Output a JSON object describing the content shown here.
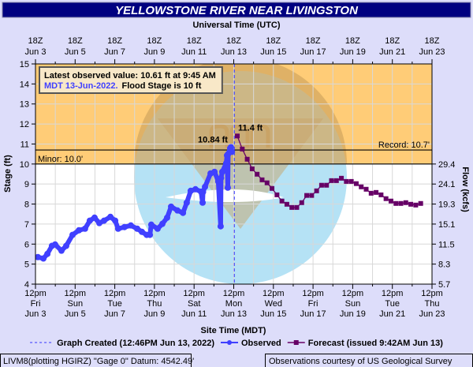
{
  "title": "YELLOWSTONE RIVER NEAR LIVINGSTON",
  "colors": {
    "title_bg": "#000080",
    "page_bg": "#ddddfa",
    "flood_zone": "#ffcc77",
    "observed": "#4040ff",
    "forecast": "#660066",
    "graph_created": "#3333ff"
  },
  "info_box": {
    "line1": "Latest observed value: 10.61 ft at 9:45 AM",
    "line2_blue": "MDT 13-Jun-2022.",
    "line2_black": "Flood Stage is 10 ft"
  },
  "footer": {
    "left": "LIVM8(plotting HGIRZ) \"Gage 0\" Datum: 4542.49'",
    "right": "Observations courtesy of US Geological Survey"
  },
  "legend": {
    "graph_created": "Graph Created (12:46PM Jun 13, 2022)",
    "observed": "Observed",
    "forecast": "Forecast (issued 9:42AM Jun 13)"
  },
  "chart_data": {
    "type": "line",
    "title": "YELLOWSTONE RIVER NEAR LIVINGSTON",
    "x_unit": "days since 12pm MDT Fri Jun 3, 2022",
    "xlim": [
      0,
      20
    ],
    "ylim": [
      4,
      15
    ],
    "top_xlabel": "Universal Time (UTC)",
    "xlabel": "Site Time (MDT)",
    "ylabel": "Stage (ft)",
    "y2label": "Flow (kcfs)",
    "grid": true,
    "y_ticks": [
      4,
      5,
      6,
      7,
      8,
      9,
      10,
      11,
      12,
      13,
      14,
      15
    ],
    "y2_ticks": [
      {
        "stage": 4,
        "label": "5.7"
      },
      {
        "stage": 5,
        "label": "8.3"
      },
      {
        "stage": 6,
        "label": "11.5"
      },
      {
        "stage": 7,
        "label": "15.1"
      },
      {
        "stage": 8,
        "label": "19.3"
      },
      {
        "stage": 9,
        "label": "24.1"
      },
      {
        "stage": 10,
        "label": "29.4"
      }
    ],
    "top_ticks": [
      [
        "18Z",
        "Jun 3"
      ],
      [
        "18Z",
        "Jun 5"
      ],
      [
        "18Z",
        "Jun 7"
      ],
      [
        "18Z",
        "Jun 9"
      ],
      [
        "18Z",
        "Jun 11"
      ],
      [
        "18Z",
        "Jun 13"
      ],
      [
        "18Z",
        "Jun 15"
      ],
      [
        "18Z",
        "Jun 17"
      ],
      [
        "18Z",
        "Jun 19"
      ],
      [
        "18Z",
        "Jun 21"
      ],
      [
        "18Z",
        "Jun 23"
      ]
    ],
    "bottom_ticks": [
      [
        "12pm",
        "Fri",
        "Jun 3"
      ],
      [
        "12pm",
        "Sun",
        "Jun 5"
      ],
      [
        "12pm",
        "Tue",
        "Jun 7"
      ],
      [
        "12pm",
        "Thu",
        "Jun 9"
      ],
      [
        "12pm",
        "Sat",
        "Jun 11"
      ],
      [
        "12pm",
        "Mon",
        "Jun 13"
      ],
      [
        "12pm",
        "Wed",
        "Jun 15"
      ],
      [
        "12pm",
        "Fri",
        "Jun 17"
      ],
      [
        "12pm",
        "Sun",
        "Jun 19"
      ],
      [
        "12pm",
        "Tue",
        "Jun 21"
      ],
      [
        "12pm",
        "Thu",
        "Jun 23"
      ]
    ],
    "thresholds": [
      {
        "name": "Minor",
        "value": 10.0,
        "label": "Minor: 10.0'"
      },
      {
        "name": "Record",
        "value": 10.7,
        "label": "Record: 10.7'"
      }
    ],
    "graph_created_x": 10.03,
    "annotations": [
      {
        "text": "10.84 ft",
        "x": 9.86,
        "y": 10.84,
        "series": "observed"
      },
      {
        "text": "11.4 ft",
        "x": 10.18,
        "y": 11.4,
        "series": "forecast"
      }
    ],
    "series": [
      {
        "name": "Observed",
        "points": [
          [
            0.12,
            5.35
          ],
          [
            0.4,
            5.28
          ],
          [
            0.6,
            5.51
          ],
          [
            0.83,
            5.91
          ],
          [
            0.99,
            5.98
          ],
          [
            1.31,
            5.67
          ],
          [
            1.55,
            5.91
          ],
          [
            1.87,
            6.46
          ],
          [
            2.19,
            6.69
          ],
          [
            2.5,
            6.77
          ],
          [
            2.74,
            7.17
          ],
          [
            2.98,
            7.32
          ],
          [
            3.22,
            7.05
          ],
          [
            3.46,
            7.17
          ],
          [
            3.78,
            7.36
          ],
          [
            4.02,
            7.17
          ],
          [
            4.17,
            6.77
          ],
          [
            4.49,
            6.85
          ],
          [
            4.81,
            6.93
          ],
          [
            5.13,
            6.77
          ],
          [
            5.37,
            6.61
          ],
          [
            5.61,
            6.46
          ],
          [
            5.77,
            6.46
          ],
          [
            5.84,
            6.97
          ],
          [
            6.16,
            6.77
          ],
          [
            6.4,
            7.01
          ],
          [
            6.64,
            7.32
          ],
          [
            6.84,
            7.87
          ],
          [
            7.16,
            7.68
          ],
          [
            7.44,
            7.56
          ],
          [
            7.63,
            8.07
          ],
          [
            7.83,
            8.66
          ],
          [
            8.07,
            8.74
          ],
          [
            8.35,
            8.62
          ],
          [
            8.43,
            8.07
          ],
          [
            8.45,
            8.6
          ],
          [
            8.55,
            8.86
          ],
          [
            8.83,
            9.53
          ],
          [
            9.03,
            9.61
          ],
          [
            9.22,
            9.13
          ],
          [
            9.34,
            6.89
          ],
          [
            9.36,
            9.3
          ],
          [
            9.42,
            9.61
          ],
          [
            9.62,
            10.04
          ],
          [
            9.66,
            10.43
          ],
          [
            9.7,
            8.82
          ],
          [
            9.72,
            10.5
          ],
          [
            9.82,
            10.79
          ],
          [
            9.86,
            10.84
          ],
          [
            9.91,
            10.61
          ]
        ]
      },
      {
        "name": "Forecast",
        "start": 10.18,
        "step": 0.25,
        "values": [
          11.4,
          10.75,
          10.24,
          9.76,
          9.49,
          9.21,
          9.06,
          8.78,
          8.46,
          8.15,
          7.99,
          7.83,
          7.83,
          8.07,
          8.43,
          8.43,
          8.66,
          8.94,
          8.94,
          9.17,
          9.17,
          9.29,
          9.13,
          9.13,
          9.02,
          8.86,
          8.74,
          8.54,
          8.58,
          8.46,
          8.27,
          8.15,
          8.03,
          8.03,
          8.07,
          7.99,
          7.95,
          8.03
        ]
      }
    ]
  }
}
